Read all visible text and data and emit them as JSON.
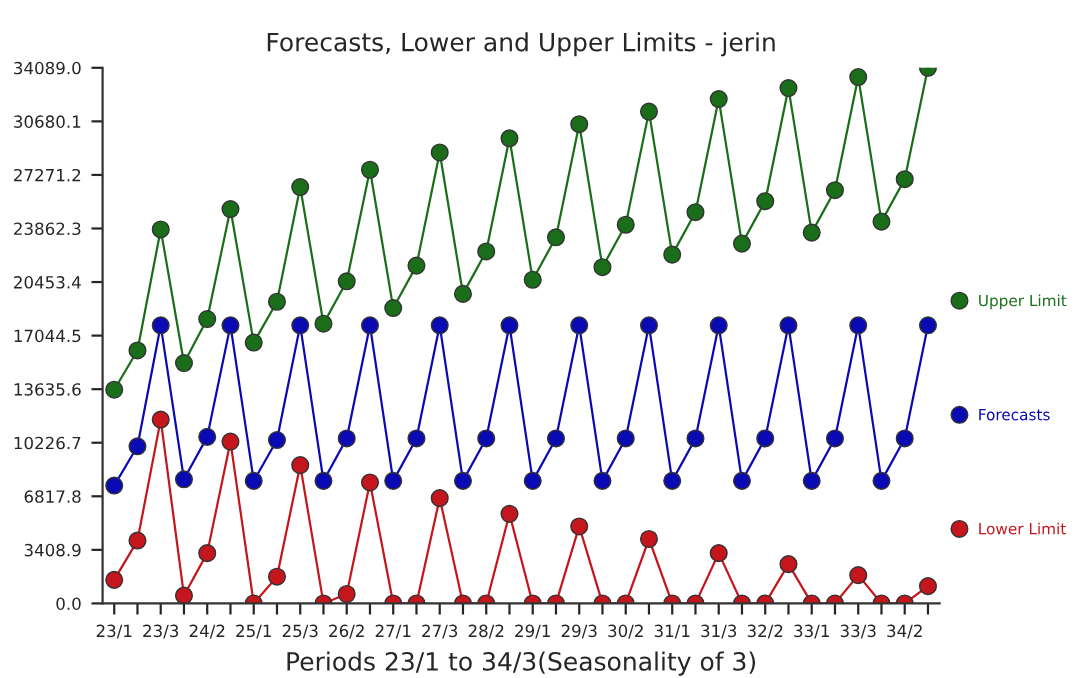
{
  "chart_data": {
    "type": "line",
    "title": "Forecasts, Lower and Upper Limits - jerin",
    "xlabel": "Periods 23/1 to 34/3(Seasonality of 3)",
    "categories": [
      "23/1",
      null,
      "23/3",
      null,
      "24/2",
      null,
      "25/1",
      null,
      "25/3",
      null,
      "26/2",
      null,
      "27/1",
      null,
      "27/3",
      null,
      "28/2",
      null,
      "29/1",
      null,
      "29/3",
      null,
      "30/2",
      null,
      "31/1",
      null,
      "31/3",
      null,
      "32/2",
      null,
      "33/1",
      null,
      "33/3",
      null,
      "34/2",
      null
    ],
    "series": [
      {
        "name": "Upper Limit",
        "color": "#1a6e1a",
        "values": [
          13600,
          16100,
          23800,
          15300,
          18100,
          25100,
          16600,
          19200,
          26500,
          17800,
          20500,
          27600,
          18800,
          21500,
          28700,
          19700,
          22400,
          29600,
          20600,
          23300,
          30500,
          21400,
          24100,
          31300,
          22200,
          24900,
          32100,
          22900,
          25600,
          32800,
          23600,
          26300,
          33500,
          24300,
          27000,
          34089
        ]
      },
      {
        "name": "Forecasts",
        "color": "#0a0ab4",
        "values": [
          7500,
          10000,
          17700,
          7900,
          10600,
          17700,
          7800,
          10400,
          17700,
          7800,
          10500,
          17700,
          7800,
          10500,
          17700,
          7800,
          10500,
          17700,
          7800,
          10500,
          17700,
          7800,
          10500,
          17700,
          7800,
          10500,
          17700,
          7800,
          10500,
          17700,
          7800,
          10500,
          17700,
          7800,
          10500,
          17700
        ]
      },
      {
        "name": "Lower Limit",
        "color": "#c4161c",
        "values": [
          1500,
          4000,
          11700,
          500,
          3200,
          10300,
          0,
          1700,
          8800,
          0,
          600,
          7700,
          0,
          0,
          6700,
          0,
          0,
          5700,
          0,
          0,
          4900,
          0,
          0,
          4100,
          0,
          0,
          3200,
          0,
          0,
          2500,
          0,
          0,
          1800,
          0,
          0,
          1100
        ]
      }
    ],
    "ylim": [
      0,
      34089.0
    ],
    "yticks": [
      {
        "value": 0,
        "label": "0.0"
      },
      {
        "value": 3408.9,
        "label": "3408.9"
      },
      {
        "value": 6817.8,
        "label": "6817.8"
      },
      {
        "value": 10226.7,
        "label": "10226.7"
      },
      {
        "value": 13635.6,
        "label": "13635.6"
      },
      {
        "value": 17044.5,
        "label": "17044.5"
      },
      {
        "value": 20453.4,
        "label": "20453.4"
      },
      {
        "value": 23862.3,
        "label": "23862.3"
      },
      {
        "value": 27271.2,
        "label": "27271.2"
      },
      {
        "value": 30680.1,
        "label": "30680.1"
      },
      {
        "value": 34089.0,
        "label": "34089.0"
      }
    ],
    "grid": false,
    "legend": "right",
    "marker": "circle",
    "line_style": "solid"
  }
}
